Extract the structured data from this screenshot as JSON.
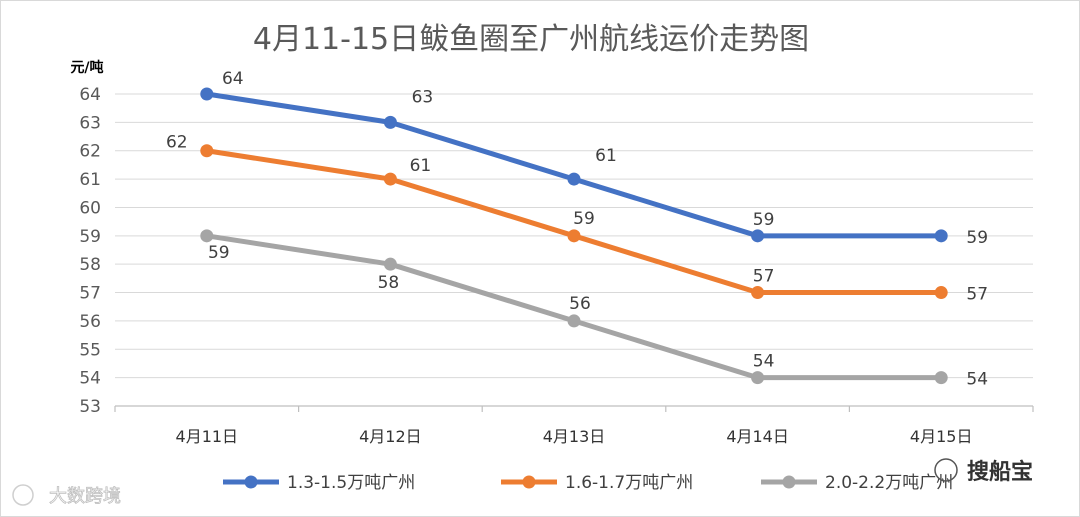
{
  "chart_data": {
    "type": "line",
    "title": "4月11-15日鲅鱼圈至广州航线运价走势图",
    "ylabel": "元/吨",
    "xlabel": "",
    "categories": [
      "4月11日",
      "4月12日",
      "4月13日",
      "4月14日",
      "4月15日"
    ],
    "ylim": [
      53,
      64
    ],
    "yticks": [
      53,
      54,
      55,
      56,
      57,
      58,
      59,
      60,
      61,
      62,
      63,
      64
    ],
    "grid": true,
    "legend_position": "bottom",
    "series": [
      {
        "name": "1.3-1.5万吨广州",
        "color": "#4472c4",
        "values": [
          64,
          63,
          61,
          59,
          59
        ]
      },
      {
        "name": "1.6-1.7万吨广州",
        "color": "#ed7d31",
        "values": [
          62,
          61,
          59,
          57,
          57
        ]
      },
      {
        "name": "2.0-2.2万吨广州",
        "color": "#a5a5a5",
        "values": [
          59,
          58,
          56,
          54,
          54
        ]
      }
    ]
  },
  "watermark_left": "大数跨境",
  "watermark_right": "搜船宝"
}
